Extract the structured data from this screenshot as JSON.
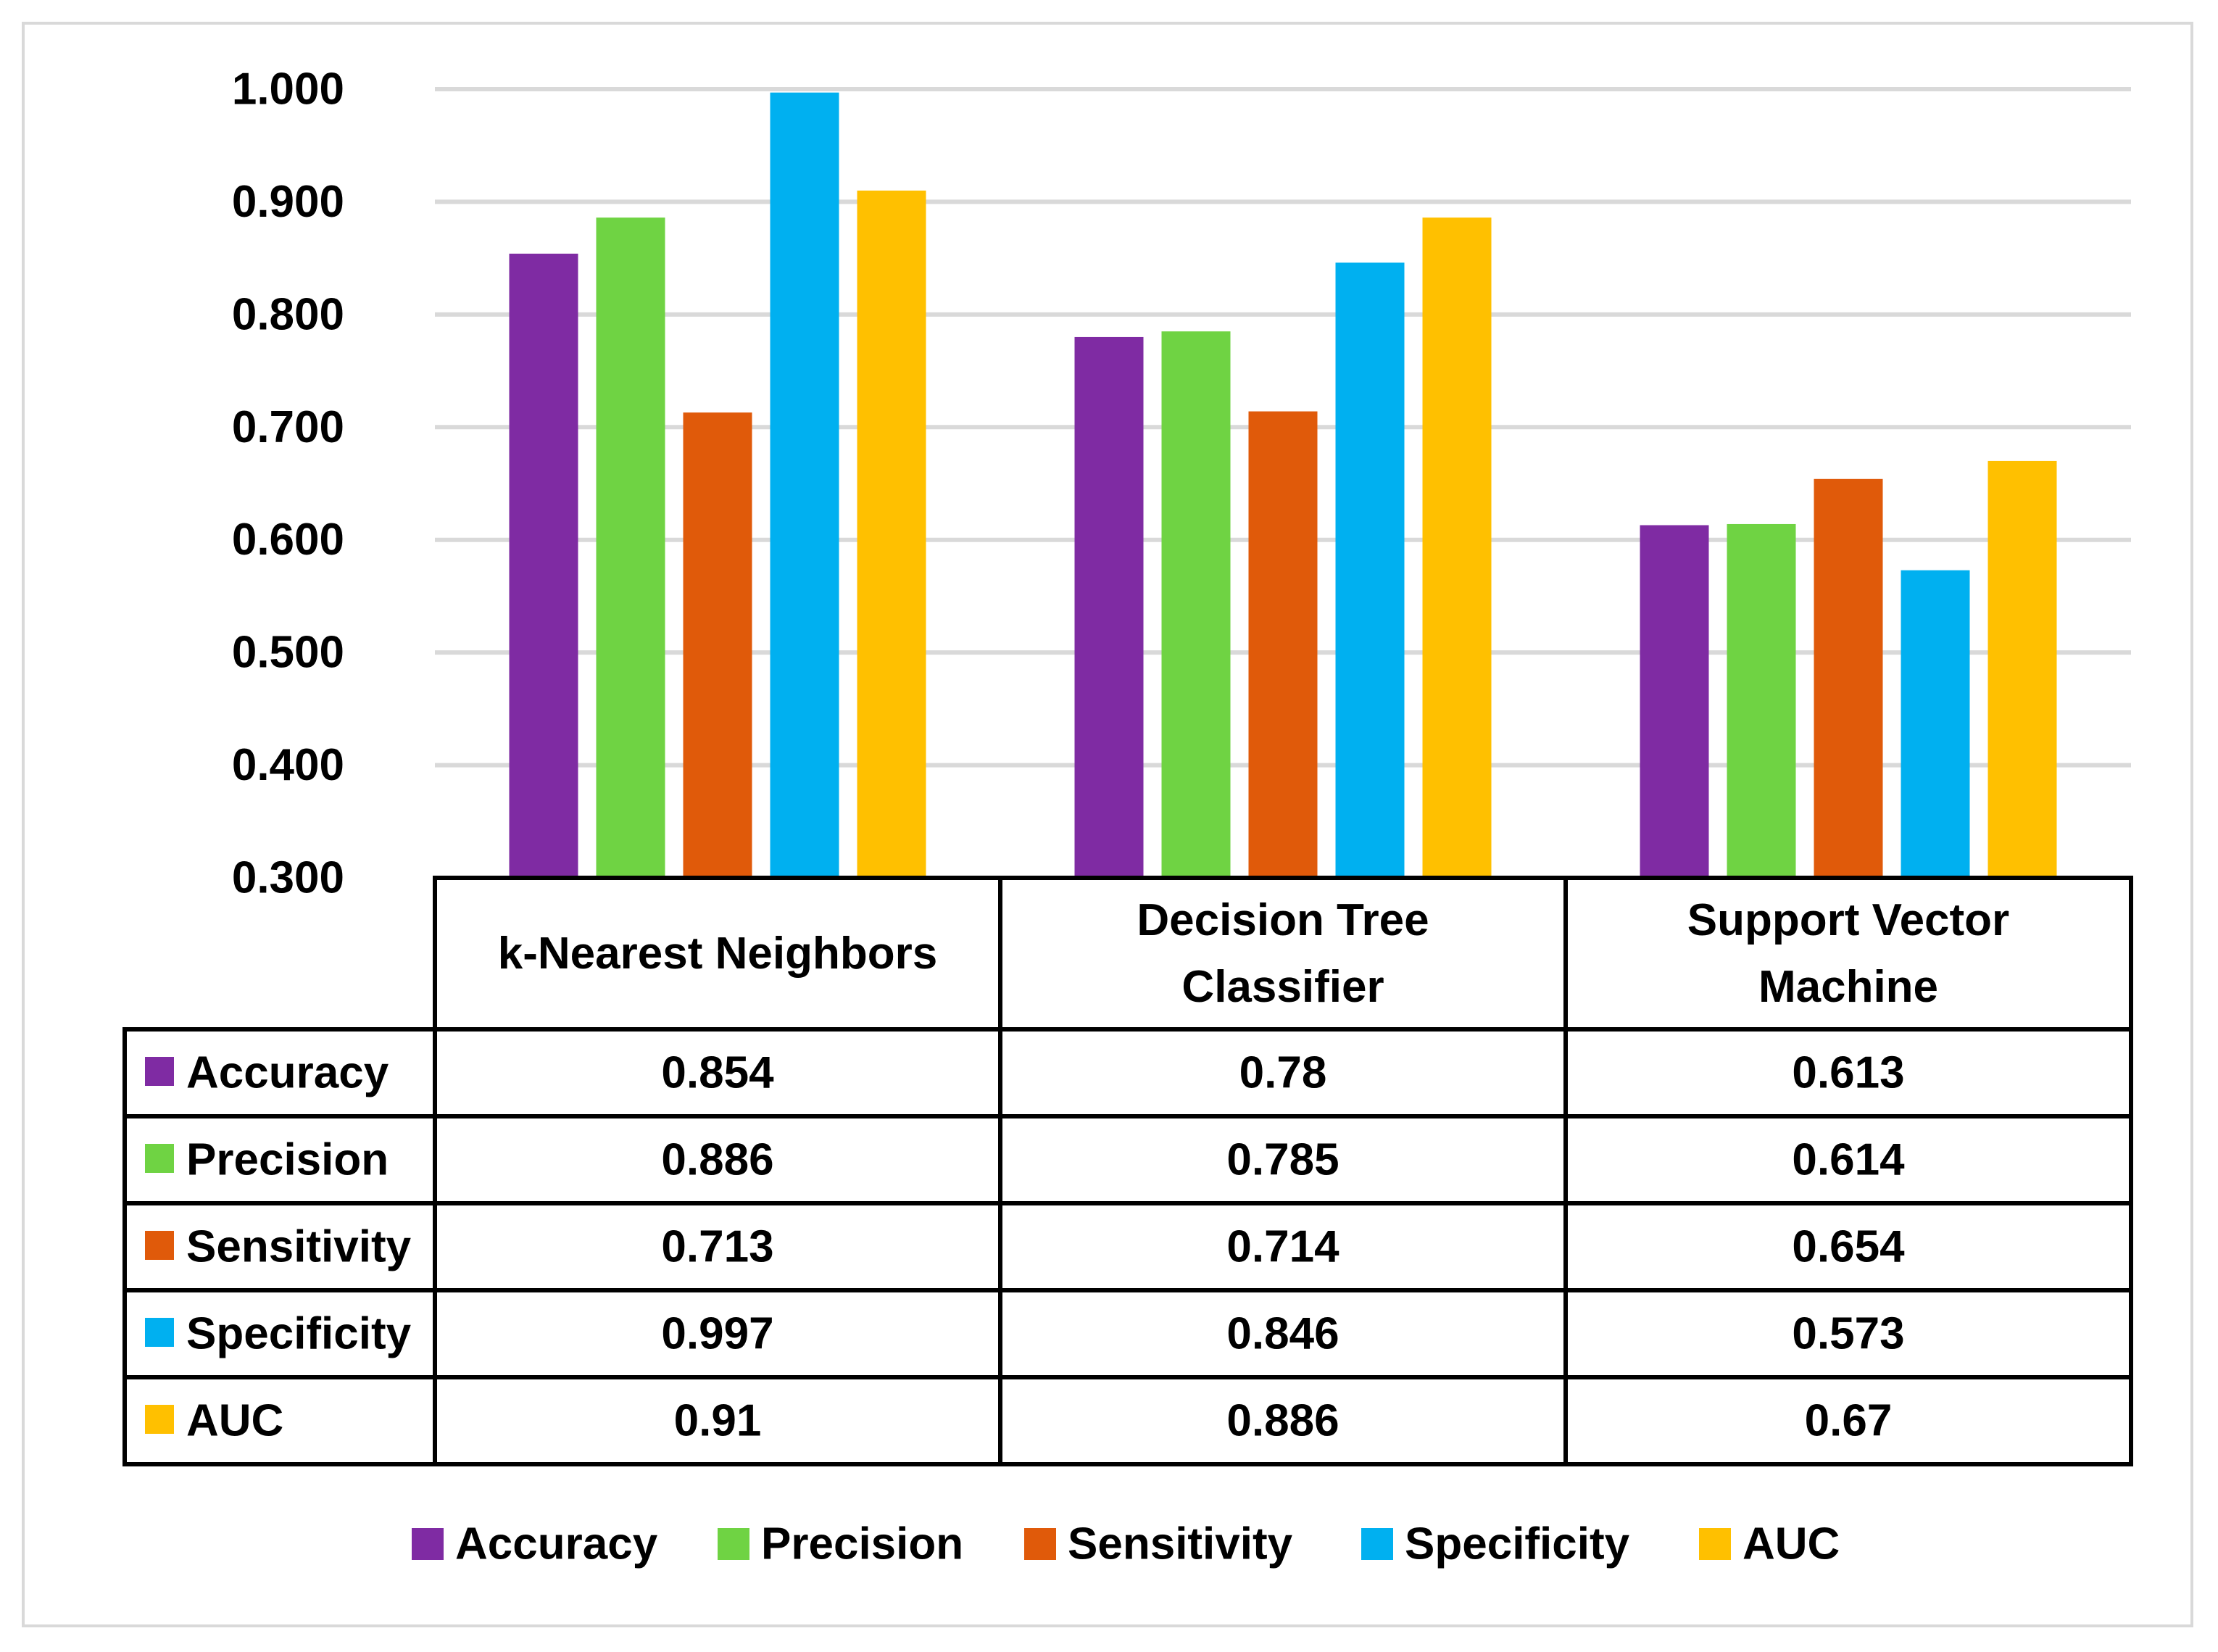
{
  "chart_data": {
    "type": "bar",
    "title": "",
    "xlabel": "",
    "ylabel": "",
    "ylim": [
      0.3,
      1.0
    ],
    "yticks": [
      "1.000",
      "0.900",
      "0.800",
      "0.700",
      "0.600",
      "0.500",
      "0.400",
      "0.300"
    ],
    "grid": true,
    "legend_position": "bottom",
    "categories": [
      [
        "k-Nearest Neighbors"
      ],
      [
        "Decision Tree",
        "Classifier"
      ],
      [
        "Support Vector",
        "Machine"
      ]
    ],
    "series": [
      {
        "name": "Accuracy",
        "color": "#7f2ba3",
        "values": [
          0.854,
          0.78,
          0.613
        ],
        "labels": [
          "0.854",
          "0.78",
          "0.613"
        ]
      },
      {
        "name": "Precision",
        "color": "#6fd343",
        "values": [
          0.886,
          0.785,
          0.614
        ],
        "labels": [
          "0.886",
          "0.785",
          "0.614"
        ]
      },
      {
        "name": "Sensitivity",
        "color": "#e05a0a",
        "values": [
          0.713,
          0.714,
          0.654
        ],
        "labels": [
          "0.713",
          "0.714",
          "0.654"
        ]
      },
      {
        "name": "Specificity",
        "color": "#00b0f0",
        "values": [
          0.997,
          0.846,
          0.573
        ],
        "labels": [
          "0.997",
          "0.846",
          "0.573"
        ]
      },
      {
        "name": "AUC",
        "color": "#ffc000",
        "values": [
          0.91,
          0.886,
          0.67
        ],
        "labels": [
          "0.91",
          "0.886",
          "0.67"
        ]
      }
    ]
  }
}
